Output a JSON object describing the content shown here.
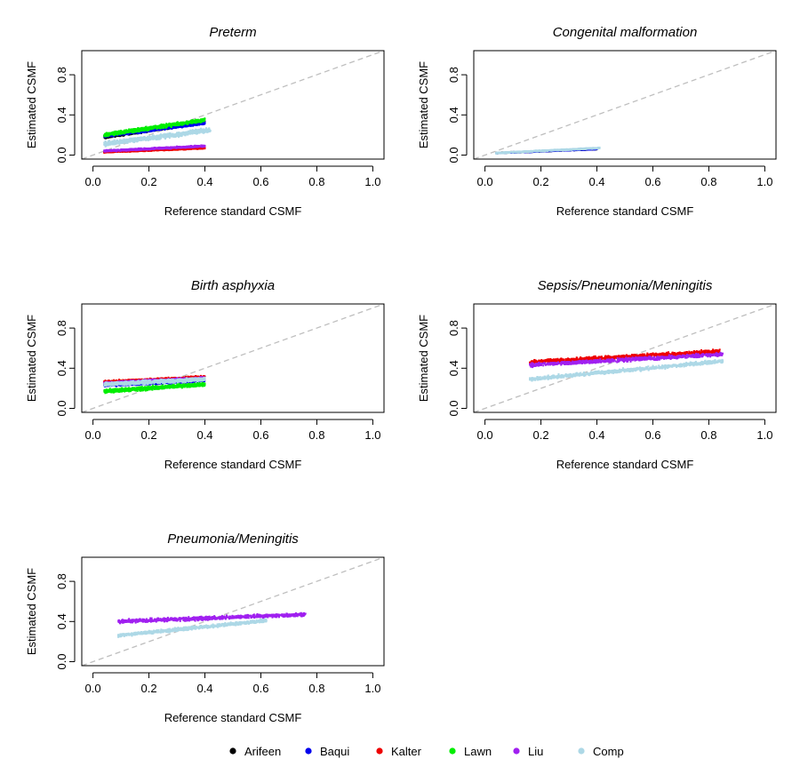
{
  "chart_data": [
    {
      "type": "scatter",
      "title": "Preterm",
      "xlabel": "Reference standard CSMF",
      "ylabel": "Estimated CSMF",
      "xlim": [
        0,
        1
      ],
      "ylim": [
        0,
        1
      ],
      "xticks": [
        "0.0",
        "0.2",
        "0.4",
        "0.6",
        "0.8",
        "1.0"
      ],
      "yticks": [
        "0.0",
        "0.4",
        "0.8"
      ],
      "reference_line": "y = x (dashed)",
      "series": [
        {
          "name": "Arifeen",
          "x_range": [
            0.04,
            0.4
          ],
          "y_at_xmin": 0.18,
          "y_at_xmax": 0.33,
          "spread": 0.02
        },
        {
          "name": "Baqui",
          "x_range": [
            0.04,
            0.4
          ],
          "y_at_xmin": 0.19,
          "y_at_xmax": 0.32,
          "spread": 0.02
        },
        {
          "name": "Kalter",
          "x_range": [
            0.04,
            0.4
          ],
          "y_at_xmin": 0.03,
          "y_at_xmax": 0.07,
          "spread": 0.01
        },
        {
          "name": "Lawn",
          "x_range": [
            0.04,
            0.4
          ],
          "y_at_xmin": 0.2,
          "y_at_xmax": 0.35,
          "spread": 0.025
        },
        {
          "name": "Liu",
          "x_range": [
            0.04,
            0.4
          ],
          "y_at_xmin": 0.04,
          "y_at_xmax": 0.09,
          "spread": 0.012
        },
        {
          "name": "Comp",
          "x_range": [
            0.04,
            0.42
          ],
          "y_at_xmin": 0.11,
          "y_at_xmax": 0.25,
          "spread": 0.03
        }
      ]
    },
    {
      "type": "scatter",
      "title": "Congenital malformation",
      "xlabel": "Reference standard CSMF",
      "ylabel": "Estimated CSMF",
      "xlim": [
        0,
        1
      ],
      "ylim": [
        0,
        1
      ],
      "xticks": [
        "0.0",
        "0.2",
        "0.4",
        "0.6",
        "0.8",
        "1.0"
      ],
      "yticks": [
        "0.0",
        "0.4",
        "0.8"
      ],
      "reference_line": "y = x (dashed)",
      "series": [
        {
          "name": "Arifeen",
          "x_range": [
            0.04,
            0.4
          ],
          "y_at_xmin": 0.02,
          "y_at_xmax": 0.06,
          "spread": 0.006
        },
        {
          "name": "Baqui",
          "x_range": [
            0.04,
            0.4
          ],
          "y_at_xmin": 0.02,
          "y_at_xmax": 0.06,
          "spread": 0.006
        },
        {
          "name": "Comp",
          "x_range": [
            0.04,
            0.41
          ],
          "y_at_xmin": 0.02,
          "y_at_xmax": 0.07,
          "spread": 0.008
        }
      ]
    },
    {
      "type": "scatter",
      "title": "Birth asphyxia",
      "xlabel": "Reference standard CSMF",
      "ylabel": "Estimated CSMF",
      "xlim": [
        0,
        1
      ],
      "ylim": [
        0,
        1
      ],
      "xticks": [
        "0.0",
        "0.2",
        "0.4",
        "0.6",
        "0.8",
        "1.0"
      ],
      "yticks": [
        "0.0",
        "0.4",
        "0.8"
      ],
      "reference_line": "y = x (dashed)",
      "series": [
        {
          "name": "Arifeen",
          "x_range": [
            0.04,
            0.4
          ],
          "y_at_xmin": 0.24,
          "y_at_xmax": 0.3,
          "spread": 0.02
        },
        {
          "name": "Baqui",
          "x_range": [
            0.04,
            0.4
          ],
          "y_at_xmin": 0.23,
          "y_at_xmax": 0.28,
          "spread": 0.02
        },
        {
          "name": "Kalter",
          "x_range": [
            0.04,
            0.4
          ],
          "y_at_xmin": 0.26,
          "y_at_xmax": 0.31,
          "spread": 0.02
        },
        {
          "name": "Lawn",
          "x_range": [
            0.04,
            0.4
          ],
          "y_at_xmin": 0.17,
          "y_at_xmax": 0.24,
          "spread": 0.025
        },
        {
          "name": "Liu",
          "x_range": [
            0.04,
            0.4
          ],
          "y_at_xmin": 0.25,
          "y_at_xmax": 0.3,
          "spread": 0.02
        },
        {
          "name": "Comp",
          "x_range": [
            0.04,
            0.4
          ],
          "y_at_xmin": 0.24,
          "y_at_xmax": 0.29,
          "spread": 0.025
        }
      ]
    },
    {
      "type": "scatter",
      "title": "Sepsis/Pneumonia/Meningitis",
      "xlabel": "Reference standard CSMF",
      "ylabel": "Estimated CSMF",
      "xlim": [
        0,
        1
      ],
      "ylim": [
        0,
        1
      ],
      "xticks": [
        "0.0",
        "0.2",
        "0.4",
        "0.6",
        "0.8",
        "1.0"
      ],
      "yticks": [
        "0.0",
        "0.4",
        "0.8"
      ],
      "reference_line": "y = x (dashed)",
      "series": [
        {
          "name": "Kalter",
          "x_range": [
            0.16,
            0.84
          ],
          "y_at_xmin": 0.46,
          "y_at_xmax": 0.57,
          "spread": 0.025
        },
        {
          "name": "Liu",
          "x_range": [
            0.16,
            0.85
          ],
          "y_at_xmin": 0.43,
          "y_at_xmax": 0.54,
          "spread": 0.025
        },
        {
          "name": "Comp",
          "x_range": [
            0.16,
            0.85
          ],
          "y_at_xmin": 0.29,
          "y_at_xmax": 0.47,
          "spread": 0.025
        }
      ]
    },
    {
      "type": "scatter",
      "title": "Pneumonia/Meningitis",
      "xlabel": "Reference standard CSMF",
      "ylabel": "Estimated CSMF",
      "xlim": [
        0,
        1
      ],
      "ylim": [
        0,
        1
      ],
      "xticks": [
        "0.0",
        "0.2",
        "0.4",
        "0.6",
        "0.8",
        "1.0"
      ],
      "yticks": [
        "0.0",
        "0.4",
        "0.8"
      ],
      "reference_line": "y = x (dashed)",
      "series": [
        {
          "name": "Liu",
          "x_range": [
            0.09,
            0.76
          ],
          "y_at_xmin": 0.4,
          "y_at_xmax": 0.47,
          "spread": 0.025
        },
        {
          "name": "Comp",
          "x_range": [
            0.09,
            0.62
          ],
          "y_at_xmin": 0.26,
          "y_at_xmax": 0.41,
          "spread": 0.022
        }
      ]
    }
  ],
  "legend": {
    "placement": "bottom",
    "items": [
      {
        "name": "Arifeen",
        "color": "#000000"
      },
      {
        "name": "Baqui",
        "color": "#0000ee"
      },
      {
        "name": "Kalter",
        "color": "#ee0000"
      },
      {
        "name": "Lawn",
        "color": "#00ee00"
      },
      {
        "name": "Liu",
        "color": "#a020f0"
      },
      {
        "name": "Comp",
        "color": "#add8e6"
      }
    ]
  },
  "colors": {
    "Arifeen": "#000000",
    "Baqui": "#0000ee",
    "Kalter": "#ee0000",
    "Lawn": "#00ee00",
    "Liu": "#a020f0",
    "Comp": "#add8e6",
    "reference_line": "#bebebe"
  }
}
